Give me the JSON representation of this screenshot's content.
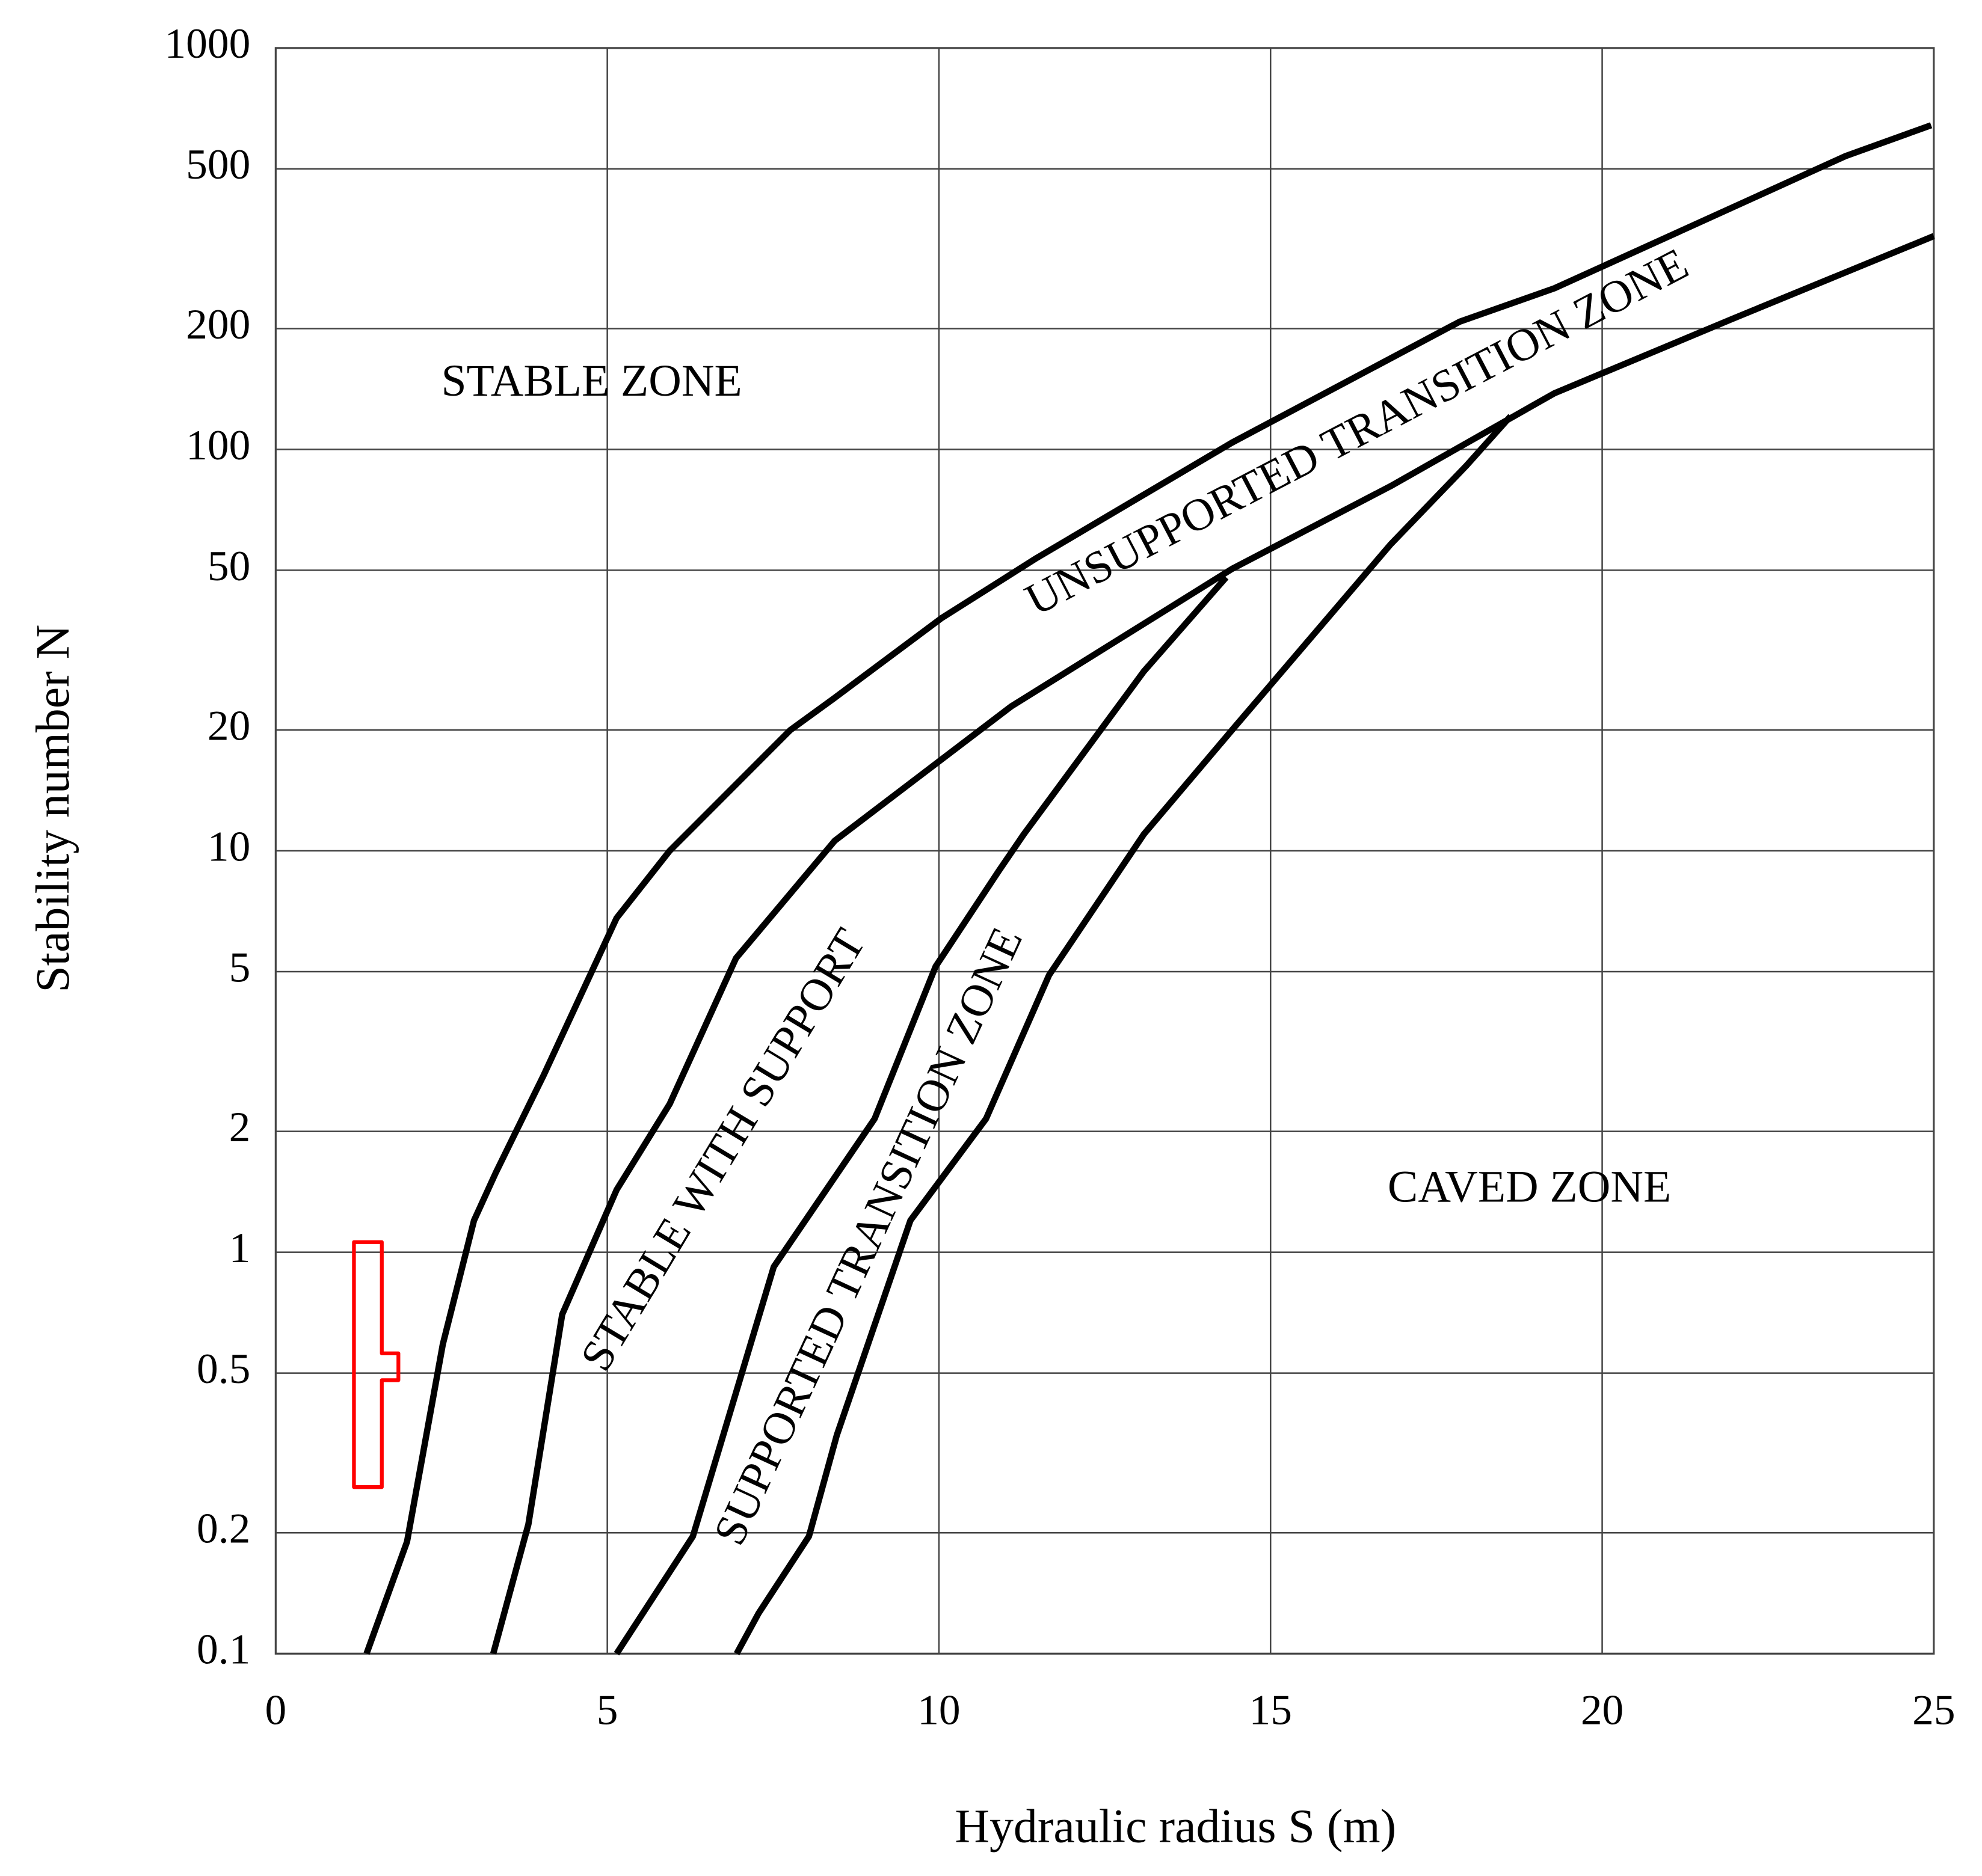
{
  "chart_data": {
    "type": "line",
    "x_label": "Hydraulic radius S (m)",
    "y_label": "Stability number N",
    "annotations": [
      "STABLE ZONE",
      "UNSUPPORTED TRANSITION ZONE",
      "STABLE WITH SUPPORT",
      "SUPPORTED TRANSITION ZONE",
      "CAVED ZONE"
    ],
    "xlim": [
      0,
      25
    ],
    "xticks": [
      0,
      5,
      10,
      15,
      20,
      25
    ],
    "ylim": [
      0.1,
      1000
    ],
    "yticks": [
      0.1,
      0.2,
      0.5,
      1,
      2,
      5,
      10,
      20,
      50,
      100,
      200,
      500,
      1000
    ],
    "y_scale": "log",
    "grid": true,
    "series": [
      {
        "color": "#000000",
        "x": [
          1.37,
          1.98,
          2.52,
          2.99,
          3.32,
          4.04,
          5.14,
          5.94,
          7.76,
          8.42,
          10.04,
          11.47,
          14.42,
          17.85,
          19.28,
          23.67,
          24.96
        ],
        "values": [
          0.1,
          0.19,
          0.59,
          1.2,
          1.58,
          2.76,
          6.8,
          10,
          20,
          24,
          38,
          53.6,
          104,
          208,
          252,
          538,
          642
        ]
      },
      {
        "color": "#000000",
        "x": [
          3.28,
          3.81,
          4.32,
          5.14,
          5.94,
          6.94,
          8.43,
          11.09,
          14.42,
          16.81,
          19.28,
          21.95,
          25
        ],
        "values": [
          0.1,
          0.21,
          0.7,
          1.43,
          2.34,
          5.4,
          10.6,
          22.9,
          50.4,
          81,
          138,
          211,
          340
        ]
      },
      {
        "color": "#000000",
        "x": [
          5.14,
          6.29,
          7.51,
          9.03,
          9.95,
          10.9,
          11.28,
          13.09,
          14.33
        ],
        "values": [
          0.1,
          0.196,
          0.92,
          2.15,
          5.15,
          8.9,
          11,
          28,
          48
        ]
      },
      {
        "color": "#000000",
        "x": [
          6.95,
          7.28,
          8.04,
          8.46,
          9.57,
          10.71,
          11.66,
          13.09,
          14.42,
          16.81,
          17.95,
          18.62
        ],
        "values": [
          0.1,
          0.126,
          0.196,
          0.35,
          1.2,
          2.15,
          4.9,
          11,
          20,
          58,
          91,
          121
        ]
      },
      {
        "color": "#ff0000",
        "closed": true,
        "x": [
          1.18,
          1.6,
          1.6,
          1.85,
          1.85,
          1.6,
          1.6,
          1.18
        ],
        "values": [
          1.06,
          1.06,
          0.56,
          0.56,
          0.48,
          0.48,
          0.26,
          0.26
        ]
      }
    ]
  }
}
